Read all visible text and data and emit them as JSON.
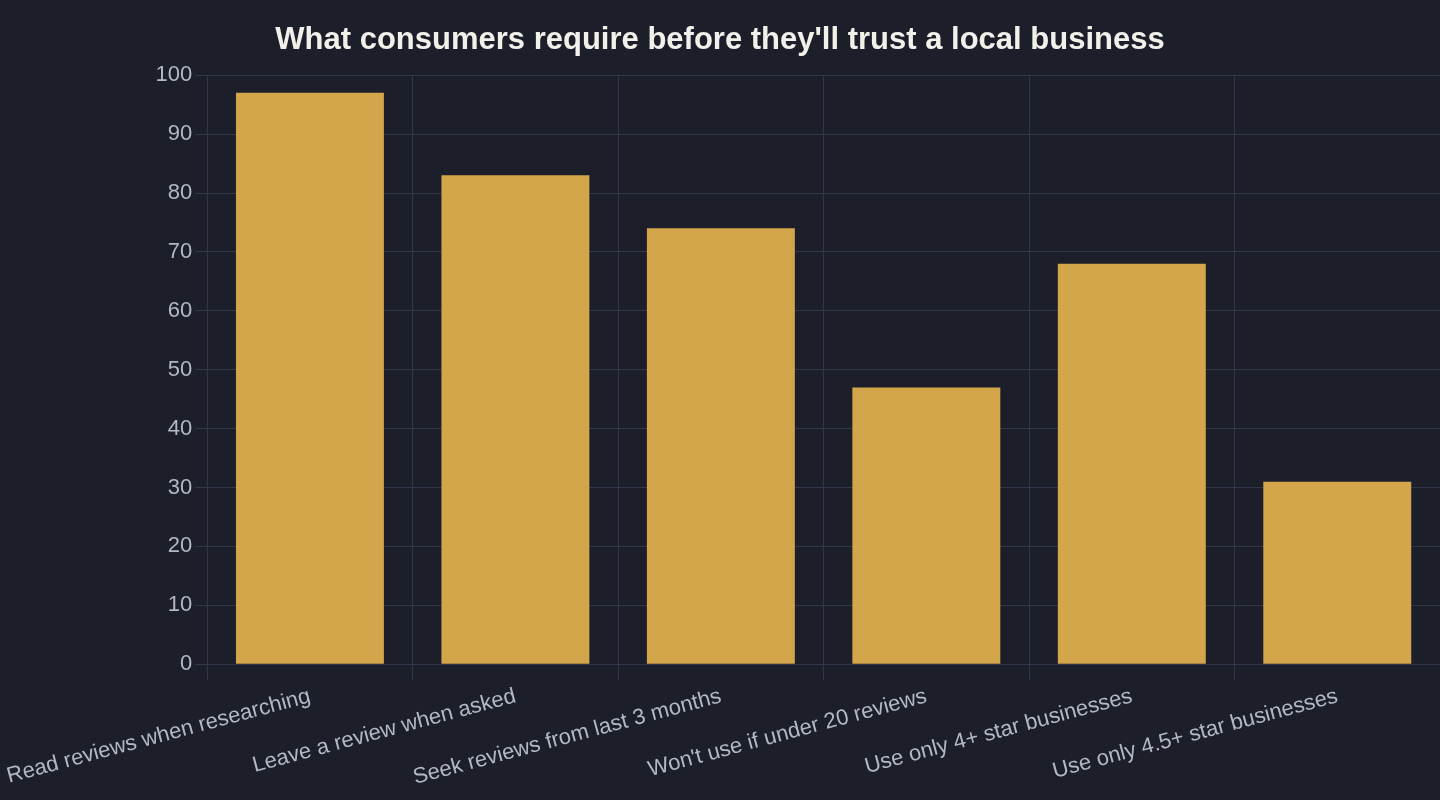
{
  "chart_data": {
    "type": "bar",
    "title": "What consumers require before they'll trust a local business",
    "categories": [
      "Read reviews when researching",
      "Leave a review when asked",
      "Seek reviews from last 3 months",
      "Won't use if under 20 reviews",
      "Use only 4+ star businesses",
      "Use only 4.5+ star businesses"
    ],
    "values": [
      97,
      83,
      74,
      47,
      68,
      31
    ],
    "color": "#d4a64c",
    "ylim": [
      0,
      100
    ],
    "yticks": [
      0,
      10,
      20,
      30,
      40,
      50,
      60,
      70,
      80,
      90,
      100
    ],
    "grid": true
  }
}
